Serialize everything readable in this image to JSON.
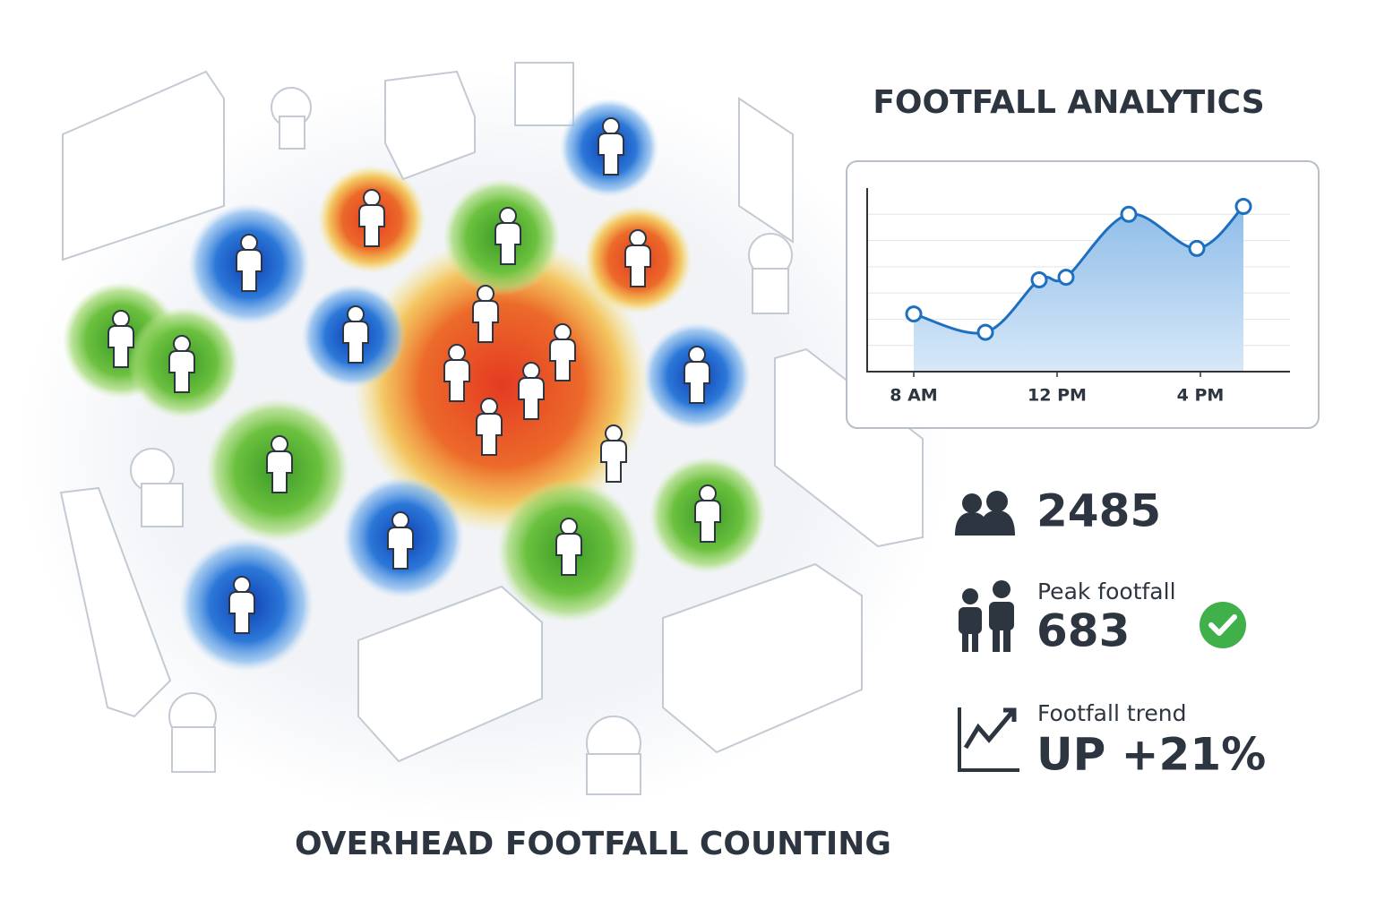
{
  "title": "FOOTFALL ANALYTICS",
  "caption": "OVERHEAD FOOTFALL COUNTING",
  "chart_data": {
    "type": "line",
    "x": [
      8,
      10,
      11.5,
      12.25,
      14,
      15.9,
      17.2
    ],
    "series": [
      {
        "color": "#1f6fc0",
        "values": [
          2.2,
          1.5,
          3.5,
          3.6,
          6.0,
          4.7,
          6.3
        ]
      }
    ],
    "xlim": [
      6.7,
      18.5
    ],
    "xticks": [
      {
        "value": 8,
        "label": "8 AM"
      },
      {
        "value": 12,
        "label": "12 PM"
      },
      {
        "value": 16,
        "label": "4 PM"
      }
    ],
    "ylim": [
      0,
      7
    ],
    "yticks": [
      1,
      2,
      3,
      4,
      5,
      6
    ],
    "grid": true
  },
  "stats": {
    "total": "2485",
    "peak": {
      "label": "Peak footfall",
      "value": "683"
    },
    "trend": {
      "label": "Footfall trend",
      "value": "UP +21%"
    }
  }
}
